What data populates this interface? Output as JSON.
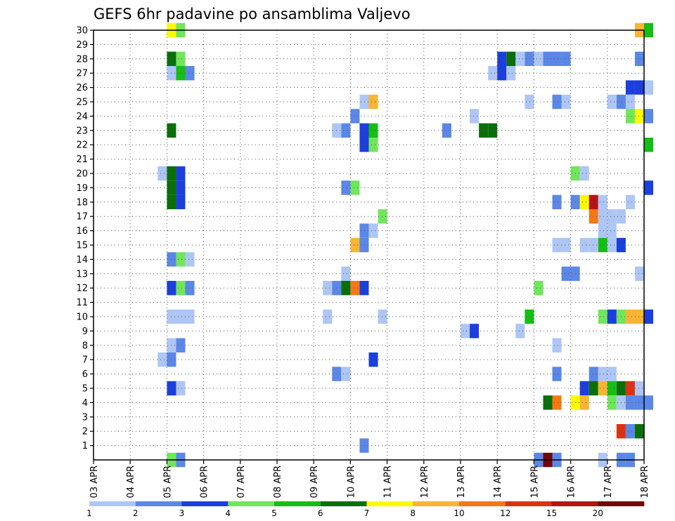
{
  "chart_data": {
    "type": "heatmap",
    "title": "GEFS 6hr padavine po ansamblima Valjevo",
    "xlabel": "",
    "ylabel": "",
    "x_tick_labels": [
      "03 APR",
      "04 APR",
      "05 APR",
      "06 APR",
      "07 APR",
      "08 APR",
      "09 APR",
      "10 APR",
      "11 APR",
      "12 APR",
      "13 APR",
      "14 APR",
      "15 APR",
      "16 APR",
      "17 APR",
      "18 APR"
    ],
    "x_range_steps": [
      0,
      60
    ],
    "x_step_hours": 6,
    "y_tick_labels": [
      "1",
      "2",
      "3",
      "4",
      "5",
      "6",
      "7",
      "8",
      "9",
      "10",
      "11",
      "12",
      "13",
      "14",
      "15",
      "16",
      "17",
      "18",
      "19",
      "20",
      "21",
      "22",
      "23",
      "24",
      "25",
      "26",
      "27",
      "28",
      "29",
      "30"
    ],
    "y_range": [
      0,
      30
    ],
    "grid": true,
    "colorbar": {
      "levels": [
        "1",
        "2",
        "3",
        "4",
        "5",
        "6",
        "7",
        "8",
        "10",
        "12",
        "15",
        "20"
      ],
      "colors": [
        "#aec6f5",
        "#5b87e6",
        "#1a3fdc",
        "#70e65a",
        "#14be14",
        "#0a6e0a",
        "#fafa00",
        "#f8b432",
        "#f57814",
        "#dc3214",
        "#b41414",
        "#700808"
      ]
    },
    "cells": [
      [
        8,
        30,
        6
      ],
      [
        9,
        30,
        3
      ],
      [
        59,
        30,
        7
      ],
      [
        60,
        30,
        4
      ],
      [
        8,
        28,
        5
      ],
      [
        9,
        28,
        3
      ],
      [
        44,
        28,
        2
      ],
      [
        45,
        28,
        5
      ],
      [
        46,
        28,
        0
      ],
      [
        47,
        28,
        1
      ],
      [
        48,
        28,
        0
      ],
      [
        49,
        28,
        1
      ],
      [
        50,
        28,
        1
      ],
      [
        51,
        28,
        1
      ],
      [
        59,
        28,
        1
      ],
      [
        8,
        27,
        0
      ],
      [
        9,
        27,
        4
      ],
      [
        10,
        27,
        1
      ],
      [
        43,
        27,
        0
      ],
      [
        44,
        27,
        2
      ],
      [
        45,
        27,
        0
      ],
      [
        58,
        26,
        2
      ],
      [
        59,
        26,
        2
      ],
      [
        60,
        26,
        0
      ],
      [
        29,
        25,
        0
      ],
      [
        30,
        25,
        7
      ],
      [
        47,
        25,
        0
      ],
      [
        50,
        25,
        1
      ],
      [
        51,
        25,
        0
      ],
      [
        56,
        25,
        0
      ],
      [
        57,
        25,
        1
      ],
      [
        58,
        25,
        0
      ],
      [
        28,
        24,
        1
      ],
      [
        41,
        24,
        0
      ],
      [
        58,
        24,
        3
      ],
      [
        59,
        24,
        6
      ],
      [
        60,
        24,
        1
      ],
      [
        26,
        23,
        0
      ],
      [
        27,
        23,
        1
      ],
      [
        29,
        23,
        2
      ],
      [
        30,
        23,
        4
      ],
      [
        38,
        23,
        1
      ],
      [
        42,
        23,
        5
      ],
      [
        43,
        23,
        5
      ],
      [
        8,
        23,
        5
      ],
      [
        29,
        22,
        2
      ],
      [
        30,
        22,
        3
      ],
      [
        60,
        22,
        4
      ],
      [
        7,
        20,
        0
      ],
      [
        8,
        20,
        5
      ],
      [
        9,
        20,
        2
      ],
      [
        52,
        20,
        3
      ],
      [
        53,
        20,
        0
      ],
      [
        8,
        19,
        5
      ],
      [
        9,
        19,
        2
      ],
      [
        27,
        19,
        1
      ],
      [
        28,
        19,
        3
      ],
      [
        60,
        19,
        2
      ],
      [
        8,
        18,
        5
      ],
      [
        9,
        18,
        2
      ],
      [
        50,
        18,
        1
      ],
      [
        52,
        18,
        1
      ],
      [
        53,
        18,
        6
      ],
      [
        54,
        18,
        10
      ],
      [
        55,
        18,
        0
      ],
      [
        58,
        18,
        0
      ],
      [
        31,
        17,
        3
      ],
      [
        54,
        17,
        8
      ],
      [
        55,
        17,
        0
      ],
      [
        56,
        17,
        0
      ],
      [
        57,
        17,
        0
      ],
      [
        29,
        16,
        1
      ],
      [
        30,
        16,
        0
      ],
      [
        55,
        16,
        0
      ],
      [
        56,
        16,
        0
      ],
      [
        28,
        15,
        7
      ],
      [
        29,
        15,
        1
      ],
      [
        50,
        15,
        0
      ],
      [
        51,
        15,
        0
      ],
      [
        53,
        15,
        0
      ],
      [
        54,
        15,
        0
      ],
      [
        55,
        15,
        4
      ],
      [
        56,
        15,
        0
      ],
      [
        57,
        15,
        2
      ],
      [
        8,
        14,
        1
      ],
      [
        9,
        14,
        3
      ],
      [
        10,
        14,
        0
      ],
      [
        27,
        13,
        0
      ],
      [
        51,
        13,
        1
      ],
      [
        52,
        13,
        1
      ],
      [
        59,
        13,
        0
      ],
      [
        8,
        12,
        2
      ],
      [
        9,
        12,
        3
      ],
      [
        10,
        12,
        1
      ],
      [
        25,
        12,
        0
      ],
      [
        26,
        12,
        1
      ],
      [
        27,
        12,
        5
      ],
      [
        28,
        12,
        8
      ],
      [
        29,
        12,
        2
      ],
      [
        48,
        12,
        3
      ],
      [
        8,
        10,
        0
      ],
      [
        9,
        10,
        0
      ],
      [
        10,
        10,
        0
      ],
      [
        25,
        10,
        0
      ],
      [
        31,
        10,
        0
      ],
      [
        47,
        10,
        4
      ],
      [
        55,
        10,
        3
      ],
      [
        56,
        10,
        2
      ],
      [
        57,
        10,
        3
      ],
      [
        58,
        10,
        7
      ],
      [
        59,
        10,
        7
      ],
      [
        60,
        10,
        2
      ],
      [
        40,
        9,
        0
      ],
      [
        41,
        9,
        2
      ],
      [
        46,
        9,
        0
      ],
      [
        8,
        8,
        0
      ],
      [
        9,
        8,
        1
      ],
      [
        50,
        8,
        0
      ],
      [
        7,
        7,
        0
      ],
      [
        8,
        7,
        1
      ],
      [
        30,
        7,
        2
      ],
      [
        26,
        6,
        1
      ],
      [
        27,
        6,
        0
      ],
      [
        50,
        6,
        1
      ],
      [
        54,
        6,
        1
      ],
      [
        55,
        6,
        0
      ],
      [
        56,
        6,
        0
      ],
      [
        8,
        5,
        2
      ],
      [
        9,
        5,
        0
      ],
      [
        53,
        5,
        2
      ],
      [
        54,
        5,
        5
      ],
      [
        55,
        5,
        7
      ],
      [
        56,
        5,
        4
      ],
      [
        57,
        5,
        5
      ],
      [
        58,
        5,
        9
      ],
      [
        59,
        5,
        0
      ],
      [
        49,
        4,
        5
      ],
      [
        50,
        4,
        8
      ],
      [
        52,
        4,
        6
      ],
      [
        53,
        4,
        7
      ],
      [
        56,
        4,
        3
      ],
      [
        57,
        4,
        0
      ],
      [
        58,
        4,
        1
      ],
      [
        59,
        4,
        1
      ],
      [
        60,
        4,
        1
      ],
      [
        57,
        2,
        9
      ],
      [
        58,
        2,
        1
      ],
      [
        59,
        2,
        5
      ],
      [
        29,
        1,
        1
      ],
      [
        8,
        0,
        3
      ],
      [
        9,
        0,
        1
      ],
      [
        48,
        0,
        1
      ],
      [
        49,
        0,
        11
      ],
      [
        50,
        0,
        1
      ],
      [
        55,
        0,
        0
      ],
      [
        57,
        0,
        1
      ],
      [
        58,
        0,
        1
      ]
    ]
  }
}
